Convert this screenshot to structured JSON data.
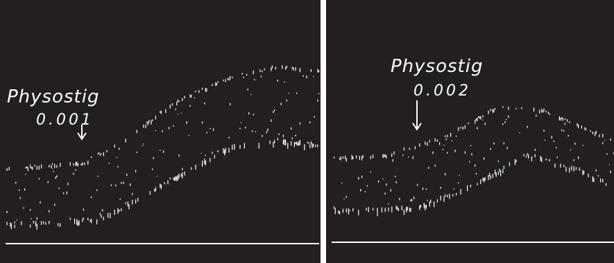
{
  "panels": [
    {
      "label": "Physostig",
      "dose": "0.001"
    },
    {
      "label": "Physostig",
      "dose": "0.002"
    }
  ]
}
